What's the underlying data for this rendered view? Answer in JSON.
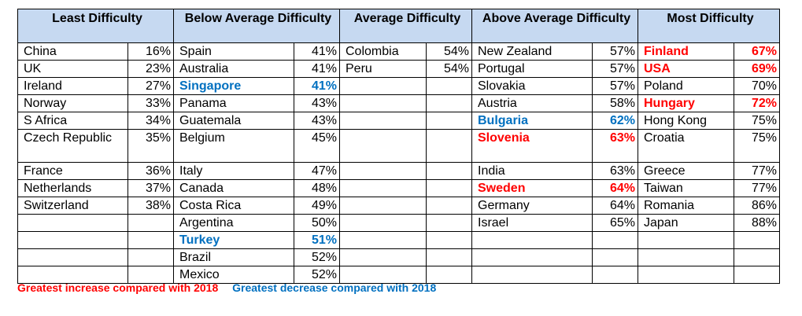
{
  "headers": [
    "Least Difficulty",
    "Below Average Difficulty",
    "Average Difficulty",
    "Above Average Difficulty",
    "Most Difficulty"
  ],
  "columns": [
    [
      {
        "name": "China",
        "pct": "16%",
        "mark": ""
      },
      {
        "name": "UK",
        "pct": "23%",
        "mark": ""
      },
      {
        "name": "Ireland",
        "pct": "27%",
        "mark": ""
      },
      {
        "name": "Norway",
        "pct": "33%",
        "mark": ""
      },
      {
        "name": "S Africa",
        "pct": "34%",
        "mark": ""
      },
      {
        "name": "Czech Republic",
        "pct": "35%",
        "mark": ""
      },
      {
        "name": "France",
        "pct": "36%",
        "mark": ""
      },
      {
        "name": "Netherlands",
        "pct": "37%",
        "mark": ""
      },
      {
        "name": "Switzerland",
        "pct": "38%",
        "mark": ""
      },
      {
        "name": "",
        "pct": "",
        "mark": ""
      },
      {
        "name": "",
        "pct": "",
        "mark": ""
      },
      {
        "name": "",
        "pct": "",
        "mark": ""
      },
      {
        "name": "",
        "pct": "",
        "mark": ""
      }
    ],
    [
      {
        "name": "Spain",
        "pct": "41%",
        "mark": ""
      },
      {
        "name": "Australia",
        "pct": "41%",
        "mark": ""
      },
      {
        "name": "Singapore",
        "pct": "41%",
        "mark": "dec"
      },
      {
        "name": "Panama",
        "pct": "43%",
        "mark": ""
      },
      {
        "name": "Guatemala",
        "pct": "43%",
        "mark": ""
      },
      {
        "name": "Belgium",
        "pct": "45%",
        "mark": ""
      },
      {
        "name": "Italy",
        "pct": "47%",
        "mark": ""
      },
      {
        "name": "Canada",
        "pct": "48%",
        "mark": ""
      },
      {
        "name": "Costa Rica",
        "pct": "49%",
        "mark": ""
      },
      {
        "name": "Argentina",
        "pct": "50%",
        "mark": ""
      },
      {
        "name": "Turkey",
        "pct": "51%",
        "mark": "dec"
      },
      {
        "name": "Brazil",
        "pct": "52%",
        "mark": ""
      },
      {
        "name": "Mexico",
        "pct": "52%",
        "mark": ""
      }
    ],
    [
      {
        "name": "Colombia",
        "pct": "54%",
        "mark": ""
      },
      {
        "name": "Peru",
        "pct": "54%",
        "mark": ""
      },
      {
        "name": "",
        "pct": "",
        "mark": ""
      },
      {
        "name": "",
        "pct": "",
        "mark": ""
      },
      {
        "name": "",
        "pct": "",
        "mark": ""
      },
      {
        "name": "",
        "pct": "",
        "mark": ""
      },
      {
        "name": "",
        "pct": "",
        "mark": ""
      },
      {
        "name": "",
        "pct": "",
        "mark": ""
      },
      {
        "name": "",
        "pct": "",
        "mark": ""
      },
      {
        "name": "",
        "pct": "",
        "mark": ""
      },
      {
        "name": "",
        "pct": "",
        "mark": ""
      },
      {
        "name": "",
        "pct": "",
        "mark": ""
      },
      {
        "name": "",
        "pct": "",
        "mark": ""
      }
    ],
    [
      {
        "name": "New Zealand",
        "pct": "57%",
        "mark": ""
      },
      {
        "name": "Portugal",
        "pct": "57%",
        "mark": ""
      },
      {
        "name": "Slovakia",
        "pct": "57%",
        "mark": ""
      },
      {
        "name": "Austria",
        "pct": "58%",
        "mark": ""
      },
      {
        "name": "Bulgaria",
        "pct": "62%",
        "mark": "dec"
      },
      {
        "name": "Slovenia",
        "pct": "63%",
        "mark": "inc"
      },
      {
        "name": "India",
        "pct": "63%",
        "mark": ""
      },
      {
        "name": "Sweden",
        "pct": "64%",
        "mark": "inc"
      },
      {
        "name": "Germany",
        "pct": "64%",
        "mark": ""
      },
      {
        "name": "Israel",
        "pct": "65%",
        "mark": ""
      },
      {
        "name": "",
        "pct": "",
        "mark": ""
      },
      {
        "name": "",
        "pct": "",
        "mark": ""
      },
      {
        "name": "",
        "pct": "",
        "mark": ""
      }
    ],
    [
      {
        "name": "Finland",
        "pct": "67%",
        "mark": "inc"
      },
      {
        "name": "USA",
        "pct": "69%",
        "mark": "inc"
      },
      {
        "name": "Poland",
        "pct": "70%",
        "mark": ""
      },
      {
        "name": "Hungary",
        "pct": "72%",
        "mark": "inc"
      },
      {
        "name": "Hong Kong",
        "pct": "75%",
        "mark": ""
      },
      {
        "name": "Croatia",
        "pct": "75%",
        "mark": ""
      },
      {
        "name": "Greece",
        "pct": "77%",
        "mark": ""
      },
      {
        "name": "Taiwan",
        "pct": "77%",
        "mark": ""
      },
      {
        "name": "Romania",
        "pct": "86%",
        "mark": ""
      },
      {
        "name": "Japan",
        "pct": "88%",
        "mark": ""
      },
      {
        "name": "",
        "pct": "",
        "mark": ""
      },
      {
        "name": "",
        "pct": "",
        "mark": ""
      },
      {
        "name": "",
        "pct": "",
        "mark": ""
      }
    ]
  ],
  "legend": {
    "increase": "Greatest increase compared with 2018",
    "decrease": "Greatest decrease compared with 2018"
  },
  "colors": {
    "header_bg": "#c6d9f1",
    "increase": "#ff0000",
    "decrease": "#0070c0"
  }
}
